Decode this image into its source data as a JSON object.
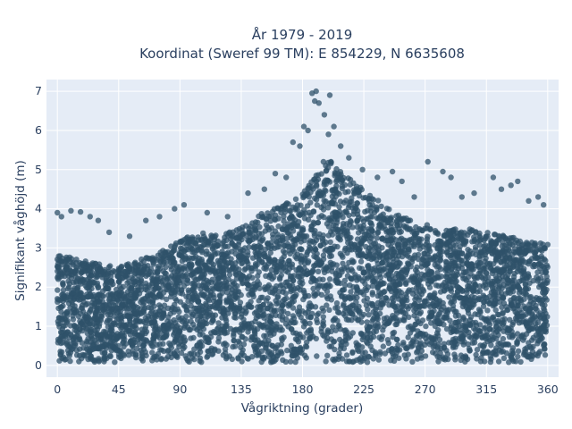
{
  "chart_data": {
    "type": "scatter",
    "title_lines": [
      "År 1979 - 2019",
      "Koordinat (Sweref 99 TM): E 854229, N 6635608"
    ],
    "xlabel": "Vågriktning (grader)",
    "ylabel": "Signifikant våghöjd (m)",
    "xlim": [
      -8,
      368
    ],
    "ylim": [
      -0.3,
      7.3
    ],
    "x_ticks": [
      0,
      45,
      90,
      135,
      180,
      225,
      270,
      315,
      360
    ],
    "y_ticks": [
      0,
      1,
      2,
      3,
      4,
      5,
      6,
      7
    ],
    "grid": true,
    "marker_color": "#2f5269",
    "marker_opacity": 0.75,
    "plot_background": "#e5ecf6",
    "envelope_direction": [
      0,
      15,
      30,
      45,
      60,
      75,
      90,
      105,
      120,
      135,
      150,
      165,
      180,
      190,
      195,
      200,
      210,
      225,
      240,
      255,
      270,
      285,
      300,
      315,
      330,
      345,
      360
    ],
    "envelope_height": [
      2.9,
      2.7,
      2.6,
      2.5,
      2.7,
      2.9,
      3.2,
      3.4,
      3.3,
      3.6,
      3.9,
      4.1,
      4.4,
      4.9,
      5.2,
      5.3,
      4.9,
      4.5,
      4.1,
      3.8,
      3.6,
      3.5,
      3.5,
      3.4,
      3.3,
      3.2,
      3.1
    ],
    "outliers": [
      {
        "x": 0,
        "y": 3.9
      },
      {
        "x": 3,
        "y": 3.8
      },
      {
        "x": 10,
        "y": 3.95
      },
      {
        "x": 17,
        "y": 3.92
      },
      {
        "x": 24,
        "y": 3.8
      },
      {
        "x": 30,
        "y": 3.7
      },
      {
        "x": 38,
        "y": 3.4
      },
      {
        "x": 53,
        "y": 3.3
      },
      {
        "x": 65,
        "y": 3.7
      },
      {
        "x": 75,
        "y": 3.8
      },
      {
        "x": 86,
        "y": 4.0
      },
      {
        "x": 93,
        "y": 4.1
      },
      {
        "x": 110,
        "y": 3.9
      },
      {
        "x": 125,
        "y": 3.8
      },
      {
        "x": 140,
        "y": 4.4
      },
      {
        "x": 152,
        "y": 4.5
      },
      {
        "x": 160,
        "y": 4.9
      },
      {
        "x": 168,
        "y": 4.8
      },
      {
        "x": 173,
        "y": 5.7
      },
      {
        "x": 178,
        "y": 5.6
      },
      {
        "x": 181,
        "y": 6.1
      },
      {
        "x": 184,
        "y": 6.0
      },
      {
        "x": 187,
        "y": 6.95
      },
      {
        "x": 190,
        "y": 7.0
      },
      {
        "x": 189,
        "y": 6.75
      },
      {
        "x": 192,
        "y": 6.7
      },
      {
        "x": 196,
        "y": 6.4
      },
      {
        "x": 200,
        "y": 6.9
      },
      {
        "x": 203,
        "y": 6.1
      },
      {
        "x": 199,
        "y": 5.9
      },
      {
        "x": 208,
        "y": 5.6
      },
      {
        "x": 214,
        "y": 5.3
      },
      {
        "x": 224,
        "y": 5.0
      },
      {
        "x": 235,
        "y": 4.8
      },
      {
        "x": 246,
        "y": 4.95
      },
      {
        "x": 253,
        "y": 4.7
      },
      {
        "x": 262,
        "y": 4.3
      },
      {
        "x": 272,
        "y": 5.2
      },
      {
        "x": 283,
        "y": 4.95
      },
      {
        "x": 289,
        "y": 4.8
      },
      {
        "x": 297,
        "y": 4.3
      },
      {
        "x": 306,
        "y": 4.4
      },
      {
        "x": 320,
        "y": 4.8
      },
      {
        "x": 326,
        "y": 4.5
      },
      {
        "x": 333,
        "y": 4.6
      },
      {
        "x": 338,
        "y": 4.7
      },
      {
        "x": 346,
        "y": 4.2
      },
      {
        "x": 353,
        "y": 4.3
      },
      {
        "x": 357,
        "y": 4.1
      }
    ]
  }
}
